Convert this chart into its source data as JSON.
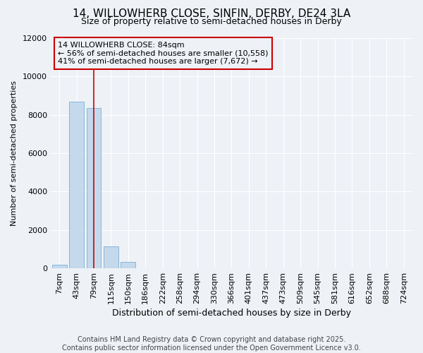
{
  "title_line1": "14, WILLOWHERB CLOSE, SINFIN, DERBY, DE24 3LA",
  "title_line2": "Size of property relative to semi-detached houses in Derby",
  "xlabel": "Distribution of semi-detached houses by size in Derby",
  "ylabel": "Number of semi-detached properties",
  "footnote1": "Contains HM Land Registry data © Crown copyright and database right 2025.",
  "footnote2": "Contains public sector information licensed under the Open Government Licence v3.0.",
  "bin_labels": [
    "7sqm",
    "43sqm",
    "79sqm",
    "115sqm",
    "150sqm",
    "186sqm",
    "222sqm",
    "258sqm",
    "294sqm",
    "330sqm",
    "366sqm",
    "401sqm",
    "437sqm",
    "473sqm",
    "509sqm",
    "545sqm",
    "581sqm",
    "616sqm",
    "652sqm",
    "688sqm",
    "724sqm"
  ],
  "bin_values": [
    200,
    8700,
    8350,
    1150,
    340,
    0,
    0,
    0,
    0,
    0,
    0,
    0,
    0,
    0,
    0,
    0,
    0,
    0,
    0,
    0,
    0
  ],
  "bar_color": "#c5d9ed",
  "bar_edge_color": "#7aaed4",
  "property_bin_index": 2,
  "marker_line_color": "#cc0000",
  "annotation_line1": "14 WILLOWHERB CLOSE: 84sqm",
  "annotation_line2": "← 56% of semi-detached houses are smaller (10,558)",
  "annotation_line3": "41% of semi-detached houses are larger (7,672) →",
  "annotation_box_color": "#cc0000",
  "ylim": [
    0,
    12000
  ],
  "yticks": [
    0,
    2000,
    4000,
    6000,
    8000,
    10000,
    12000
  ],
  "background_color": "#eef2f7",
  "grid_color": "#ffffff",
  "title_fontsize": 11,
  "subtitle_fontsize": 9,
  "annotation_fontsize": 8,
  "xlabel_fontsize": 9,
  "ylabel_fontsize": 8,
  "tick_fontsize": 8,
  "footnote_fontsize": 7
}
